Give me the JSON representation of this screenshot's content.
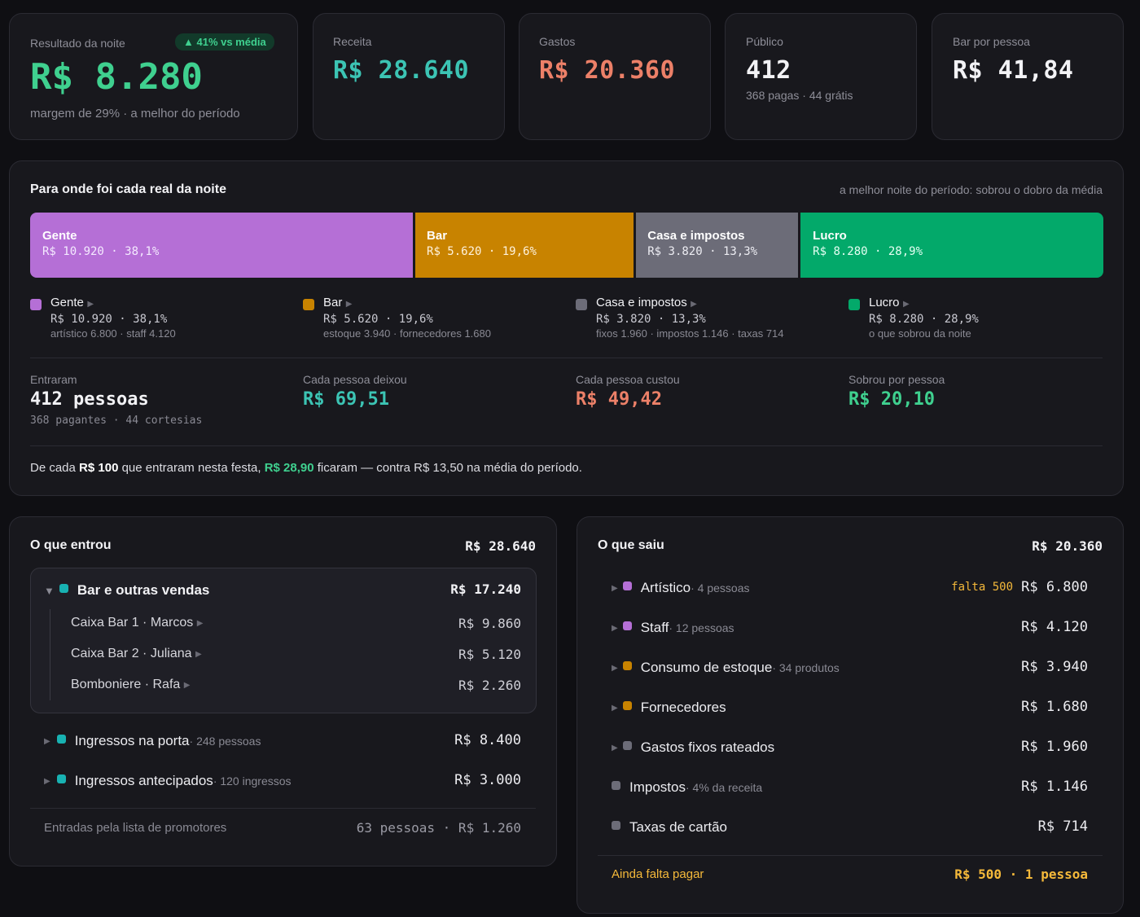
{
  "kpis": [
    {
      "label": "Resultado da noite",
      "value": "R$ 8.280",
      "badge": "▲ 41% vs média",
      "sub": "margem de 29% · a melhor do período"
    },
    {
      "label": "Receita",
      "value": "R$ 28.640"
    },
    {
      "label": "Gastos",
      "value": "R$ 20.360"
    },
    {
      "label": "Público",
      "value": "412",
      "sub": "368 pagas · 44 grátis"
    },
    {
      "label": "Bar por pessoa",
      "value": "R$ 41,84"
    }
  ],
  "breakdown": {
    "title": "Para onde foi cada real da noite",
    "note": "a melhor noite do período: sobrou o dobro da média",
    "segments": [
      {
        "name": "Gente",
        "value": "R$ 10.920 · 38,1%",
        "pct": 38.1,
        "color": "#b56fd6",
        "detail": "artístico 6.800 · staff 4.120"
      },
      {
        "name": "Bar",
        "value": "R$ 5.620 · 19,6%",
        "pct": 19.6,
        "color": "#c88300",
        "detail": "estoque 3.940 · fornecedores 1.680"
      },
      {
        "name": "Casa e impostos",
        "value": "R$ 3.820 · 13,3%",
        "pct": 13.3,
        "color": "#6c6c78",
        "detail": "fixos 1.960 · impostos 1.146 · taxas 714"
      },
      {
        "name": "Lucro",
        "value": "R$ 8.280 · 28,9%",
        "pct": 28.9,
        "color": "#03a96a",
        "detail": "o que sobrou da noite"
      }
    ],
    "stats": [
      {
        "label": "Entraram",
        "value": "412 pessoas",
        "sub": "368 pagantes · 44 cortesias"
      },
      {
        "label": "Cada pessoa deixou",
        "value": "R$ 69,51"
      },
      {
        "label": "Cada pessoa custou",
        "value": "R$ 49,42"
      },
      {
        "label": "Sobrou por pessoa",
        "value": "R$ 20,10"
      }
    ],
    "sentence": {
      "a": "De cada ",
      "b": "R$ 100",
      "c": " que entraram nesta festa, ",
      "d": "R$ 28,90",
      "e": " ficaram — contra R$ 13,50 na média do período."
    }
  },
  "income": {
    "title": "O que entrou",
    "total": "R$ 28.640",
    "group": {
      "name": "Bar e outras vendas",
      "total": "R$ 17.240",
      "items": [
        {
          "name": "Caixa Bar 1 · Marcos",
          "value": "R$ 9.860"
        },
        {
          "name": "Caixa Bar 2 · Juliana",
          "value": "R$ 5.120"
        },
        {
          "name": "Bomboniere · Rafa",
          "value": "R$ 2.260"
        }
      ]
    },
    "rows": [
      {
        "name": "Ingressos na porta",
        "meta": " · 248 pessoas",
        "value": "R$ 8.400"
      },
      {
        "name": "Ingressos antecipados",
        "meta": " · 120 ingressos",
        "value": "R$ 3.000"
      }
    ],
    "footer": {
      "label": "Entradas pela lista de promotores",
      "value": "63 pessoas · R$ 1.260"
    }
  },
  "expenses": {
    "title": "O que saiu",
    "total": "R$ 20.360",
    "rows": [
      {
        "name": "Artístico",
        "meta": " · 4 pessoas",
        "flag": "falta 500",
        "value": "R$ 6.800",
        "color": "#b56fd6"
      },
      {
        "name": "Staff",
        "meta": " · 12 pessoas",
        "value": "R$ 4.120",
        "color": "#b56fd6"
      },
      {
        "name": "Consumo de estoque",
        "meta": " · 34 produtos",
        "value": "R$ 3.940",
        "color": "#c88300"
      },
      {
        "name": "Fornecedores",
        "meta": "",
        "value": "R$ 1.680",
        "color": "#c88300"
      },
      {
        "name": "Gastos fixos rateados",
        "meta": "",
        "value": "R$ 1.960",
        "color": "#6c6c78"
      },
      {
        "name": "Impostos",
        "meta": " · 4% da receita",
        "value": "R$ 1.146",
        "color": "#6c6c78"
      },
      {
        "name": "Taxas de cartão",
        "meta": "",
        "value": "R$ 714",
        "color": "#6c6c78"
      }
    ],
    "footer": {
      "label": "Ainda falta pagar",
      "value": "R$ 500 · 1 pessoa"
    }
  }
}
